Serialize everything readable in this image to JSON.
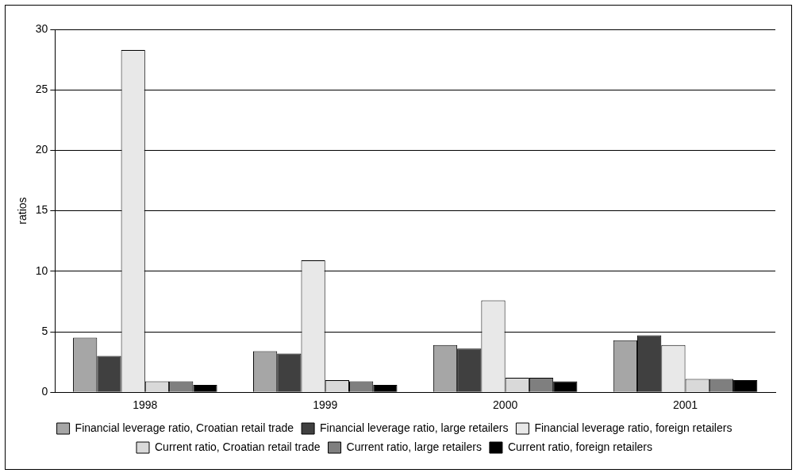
{
  "chart_data": {
    "type": "bar",
    "ylabel": "ratios",
    "categories": [
      "1998",
      "1999",
      "2000",
      "2001"
    ],
    "series": [
      {
        "name": "Financial leverage ratio, Croatian retail trade",
        "color": "#a6a6a6",
        "values": [
          4.5,
          3.4,
          3.9,
          4.3
        ]
      },
      {
        "name": "Financial leverage ratio, large retailers",
        "color": "#404040",
        "values": [
          3.0,
          3.2,
          3.6,
          4.7
        ]
      },
      {
        "name": "Financial leverage ratio, foreign retailers",
        "color": "#e8e8e8",
        "values": [
          28.3,
          10.9,
          7.6,
          3.9
        ]
      },
      {
        "name": "Current ratio, Croatian retail trade",
        "color": "#d9d9d9",
        "values": [
          0.9,
          1.0,
          1.2,
          1.1
        ]
      },
      {
        "name": "Current ratio, large retailers",
        "color": "#7f7f7f",
        "values": [
          0.9,
          0.9,
          1.2,
          1.1
        ]
      },
      {
        "name": "Current ratio, foreign retailers",
        "color": "#000000",
        "values": [
          0.6,
          0.6,
          0.9,
          1.0
        ]
      }
    ],
    "ylim": [
      0,
      30
    ],
    "yticks": [
      0,
      5,
      10,
      15,
      20,
      25,
      30
    ],
    "grid": "y",
    "legend": "bottom"
  }
}
